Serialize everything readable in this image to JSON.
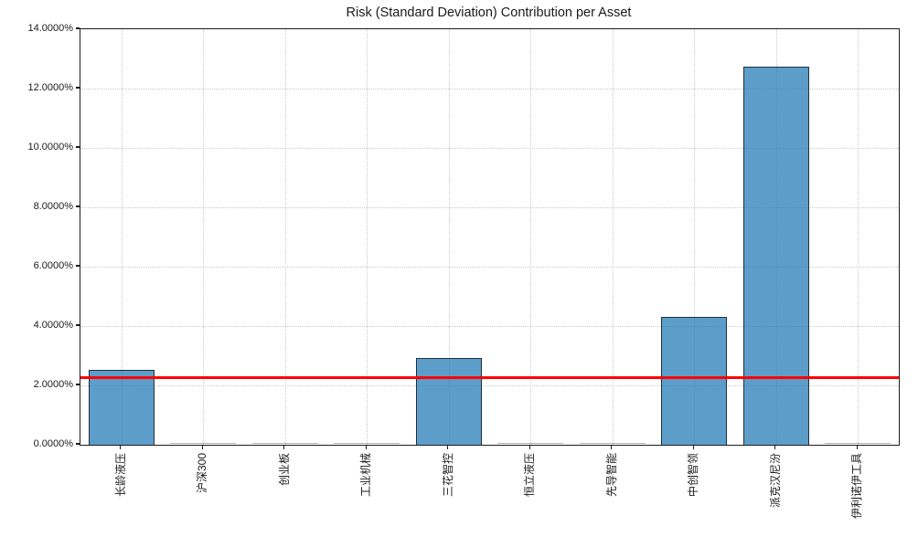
{
  "chart_data": {
    "type": "bar",
    "title": "Risk (Standard Deviation) Contribution per Asset",
    "xlabel": "",
    "ylabel": "",
    "categories": [
      "长龄液压",
      "沪深300",
      "创业板",
      "工业机械",
      "三花智控",
      "恒立液压",
      "先导智能",
      "中创智领",
      "派克汉尼汾",
      "伊利诺伊工具"
    ],
    "values": [
      2.52,
      0.002,
      0.002,
      0.002,
      2.93,
      0.002,
      0.002,
      4.32,
      12.75,
      0.002
    ],
    "unit": "%",
    "ylim": [
      0,
      14
    ],
    "ytick_values": [
      0,
      2,
      4,
      6,
      8,
      10,
      12,
      14
    ],
    "ytick_labels": [
      "0.0000%",
      "2.0000%",
      "4.0000%",
      "6.0000%",
      "8.0000%",
      "10.0000%",
      "12.0000%",
      "14.0000%"
    ],
    "grid": true,
    "grid_style": "dotted",
    "legend": null,
    "reference_line": {
      "value": 2.26,
      "color": "#ff0000"
    },
    "bar_fill_color": "#62A0CA",
    "bar_edge_color": "#2b2f33",
    "background_color": "#ffffff"
  }
}
